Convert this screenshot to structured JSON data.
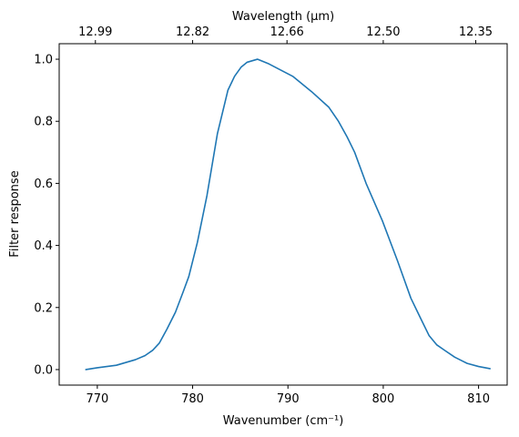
{
  "chart_data": {
    "type": "line",
    "title": "",
    "xlabel": "Wavenumber (cm⁻¹)",
    "ylabel": "Filter response",
    "secondary_xlabel": "Wavelength (μm)",
    "xlim": [
      766,
      813
    ],
    "ylim": [
      -0.05,
      1.05
    ],
    "grid": false,
    "x_ticks": [
      770,
      780,
      790,
      800,
      810
    ],
    "y_ticks": [
      0.0,
      0.2,
      0.4,
      0.6,
      0.8,
      1.0
    ],
    "x_tick_labels": [
      "770",
      "780",
      "790",
      "800",
      "810"
    ],
    "y_tick_labels": [
      "0.0",
      "0.2",
      "0.4",
      "0.6",
      "0.8",
      "1.0"
    ],
    "secondary_x_ticks": [
      {
        "label": "12.99",
        "wavenumber": 769.8
      },
      {
        "label": "12.82",
        "wavenumber": 780.0
      },
      {
        "label": "12.66",
        "wavenumber": 789.9
      },
      {
        "label": "12.50",
        "wavenumber": 800.0
      },
      {
        "label": "12.35",
        "wavenumber": 809.7
      }
    ],
    "series": [
      {
        "color": "#1f77b4",
        "x": [
          768.8,
          770,
          772,
          774,
          775,
          775.8,
          776.5,
          777.3,
          778.2,
          779,
          779.6,
          780.5,
          781.5,
          782.6,
          783.7,
          784.4,
          785.1,
          785.7,
          786.8,
          788,
          790.5,
          792.5,
          794.3,
          795.3,
          796.2,
          797,
          798.2,
          799.9,
          801.5,
          802.9,
          804,
          804.8,
          805.6,
          806.4,
          807.5,
          808.8,
          810,
          811.2
        ],
        "y": [
          0.0,
          0.006,
          0.014,
          0.032,
          0.045,
          0.062,
          0.085,
          0.13,
          0.185,
          0.25,
          0.3,
          0.41,
          0.56,
          0.76,
          0.9,
          0.945,
          0.975,
          0.99,
          1.0,
          0.985,
          0.945,
          0.895,
          0.845,
          0.8,
          0.75,
          0.7,
          0.6,
          0.48,
          0.35,
          0.23,
          0.16,
          0.11,
          0.08,
          0.063,
          0.04,
          0.02,
          0.01,
          0.003
        ]
      }
    ]
  }
}
